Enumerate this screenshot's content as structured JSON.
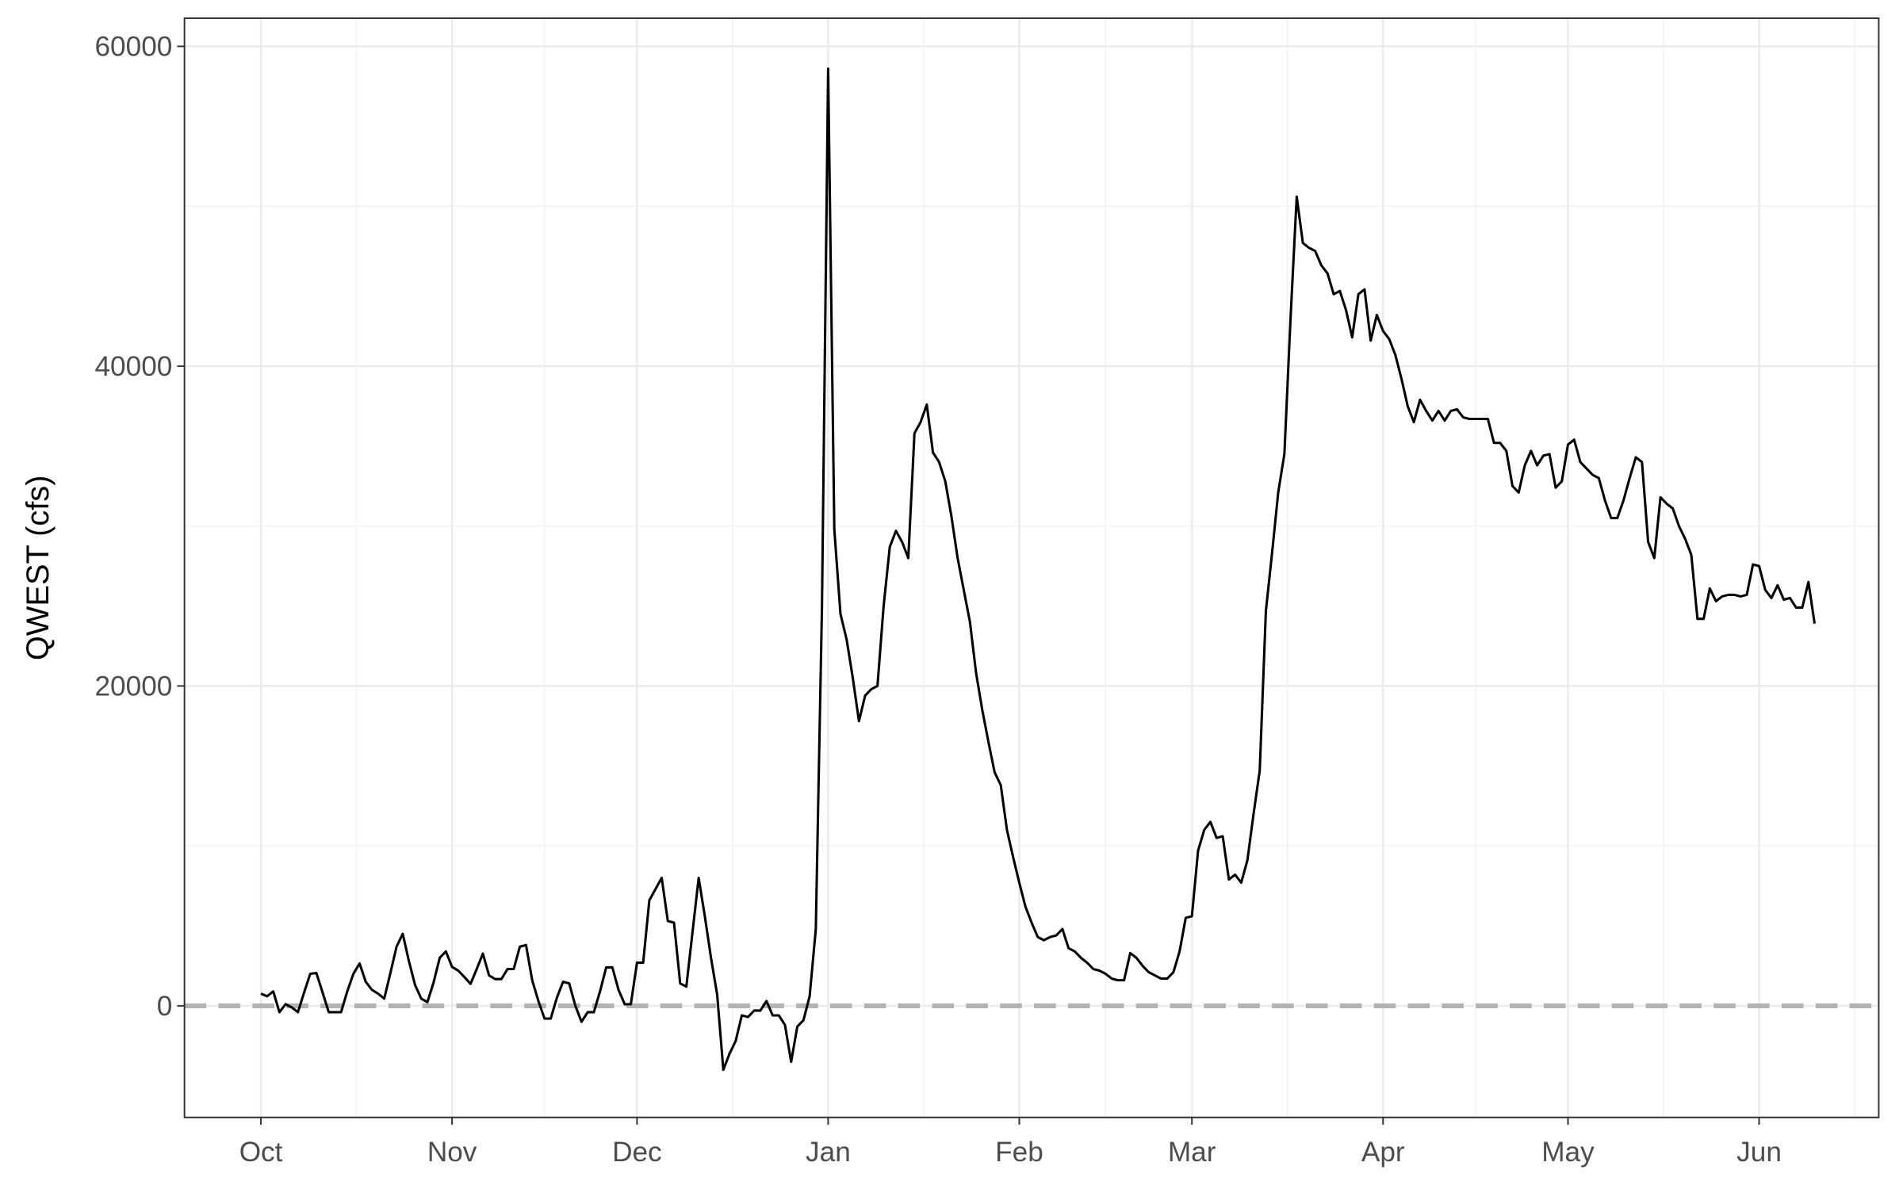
{
  "chart_data": {
    "type": "line",
    "y_label": "QWEST (cfs)",
    "x": [
      0,
      1,
      2,
      3,
      4,
      5,
      6,
      7,
      8,
      9,
      10,
      11,
      12,
      13,
      14,
      15,
      16,
      17,
      18,
      19,
      20,
      21,
      22,
      23,
      24,
      25,
      26,
      27,
      28,
      29,
      30,
      31,
      32,
      33,
      34,
      35,
      36,
      37,
      38,
      39,
      40,
      41,
      42,
      43,
      44,
      45,
      46,
      47,
      48,
      49,
      50,
      51,
      52,
      53,
      54,
      55,
      56,
      57,
      58,
      59,
      60,
      61,
      62,
      63,
      64,
      65,
      66,
      67,
      68,
      69,
      70,
      71,
      72,
      73,
      74,
      75,
      76,
      77,
      78,
      79,
      80,
      81,
      82,
      83,
      84,
      85,
      86,
      87,
      88,
      89,
      90,
      91,
      92,
      93,
      94,
      95,
      96,
      97,
      98,
      99,
      100,
      101,
      102,
      103,
      104,
      105,
      106,
      107,
      108,
      109,
      110,
      111,
      112,
      113,
      114,
      115,
      116,
      117,
      118,
      119,
      120,
      121,
      122,
      123,
      124,
      125,
      126,
      127,
      128,
      129,
      130,
      131,
      132,
      133,
      134,
      135,
      136,
      137,
      138,
      139,
      140,
      141,
      142,
      143,
      144,
      145,
      146,
      147,
      148,
      149,
      150,
      151,
      152,
      153,
      154,
      155,
      156,
      157,
      158,
      159,
      160,
      161,
      162,
      163,
      164,
      165,
      166,
      167,
      168,
      169,
      170,
      171,
      172,
      173,
      174,
      175,
      176,
      177,
      178,
      179,
      180,
      181,
      182,
      183,
      184,
      185,
      186,
      187,
      188,
      189,
      190,
      191,
      192,
      193,
      194,
      195,
      196,
      197,
      198,
      199,
      200,
      201,
      202,
      203,
      204,
      205,
      206,
      207,
      208,
      209,
      210,
      211,
      212,
      213,
      214,
      215,
      216,
      217,
      218,
      219,
      220,
      221,
      222,
      223,
      224,
      225,
      226,
      227,
      228,
      229,
      230,
      231,
      232,
      233,
      234,
      235,
      236,
      237,
      238,
      239,
      240,
      241,
      242,
      243,
      244,
      245,
      246,
      247,
      248,
      249,
      250,
      251,
      252
    ],
    "series": [
      {
        "color": "#000000",
        "values": [
          760,
          600,
          900,
          -400,
          100,
          -100,
          -400,
          830,
          2000,
          2050,
          830,
          -400,
          -400,
          -400,
          900,
          2000,
          2650,
          1500,
          1000,
          760,
          450,
          2050,
          3700,
          4500,
          2800,
          1300,
          450,
          230,
          1450,
          3000,
          3400,
          2430,
          2200,
          1800,
          1370,
          2300,
          3260,
          1900,
          1670,
          1670,
          2300,
          2300,
          3700,
          3800,
          1600,
          300,
          -800,
          -800,
          500,
          1500,
          1400,
          0,
          -1000,
          -400,
          -400,
          900,
          2400,
          2400,
          1000,
          100,
          100,
          2700,
          2700,
          6600,
          7300,
          8000,
          5300,
          5200,
          1400,
          1200,
          4600,
          8000,
          5600,
          3000,
          700,
          -4000,
          -3000,
          -2200,
          -600,
          -700,
          -300,
          -300,
          300,
          -600,
          -600,
          -1200,
          -3500,
          -1300,
          -900,
          600,
          4800,
          25000,
          58600,
          29800,
          24500,
          22900,
          20500,
          17800,
          19400,
          19800,
          20000,
          25000,
          28700,
          29700,
          29000,
          28000,
          35800,
          36500,
          37600,
          34600,
          34000,
          32800,
          30600,
          28000,
          26000,
          24000,
          20800,
          18500,
          16500,
          14600,
          13800,
          11000,
          9300,
          7700,
          6200,
          5200,
          4300,
          4100,
          4300,
          4400,
          4800,
          3600,
          3400,
          3000,
          2700,
          2300,
          2200,
          2000,
          1700,
          1600,
          1600,
          3300,
          3000,
          2500,
          2100,
          1900,
          1700,
          1700,
          2100,
          3400,
          5500,
          5600,
          9700,
          11000,
          11500,
          10500,
          10600,
          7900,
          8200,
          7700,
          9100,
          12000,
          14700,
          24700,
          28300,
          32100,
          34500,
          43000,
          50600,
          47700,
          47400,
          47200,
          46300,
          45800,
          44500,
          44700,
          43500,
          41800,
          44500,
          44800,
          41600,
          43200,
          42200,
          41700,
          40700,
          39200,
          37500,
          36500,
          37900,
          37200,
          36600,
          37200,
          36600,
          37200,
          37300,
          36800,
          36700,
          36700,
          36700,
          36700,
          35200,
          35200,
          34700,
          32500,
          32100,
          33800,
          34700,
          33800,
          34400,
          34500,
          32400,
          32800,
          35100,
          35400,
          34000,
          33600,
          33200,
          33000,
          31600,
          30500,
          30500,
          31600,
          33000,
          34300,
          34000,
          29000,
          28000,
          31800,
          31400,
          31100,
          30000,
          29200,
          28200,
          24200,
          24200,
          26100,
          25300,
          25600,
          25700,
          25700,
          25600,
          25700,
          27600,
          27500,
          26000,
          25500,
          26300,
          25400,
          25500,
          24900,
          24900,
          26500,
          23900
        ]
      }
    ],
    "xlim": [
      -12.4,
      262.4
    ],
    "xticks": [
      {
        "value": 0,
        "label": "Oct"
      },
      {
        "value": 31,
        "label": "Nov"
      },
      {
        "value": 61,
        "label": "Dec"
      },
      {
        "value": 92,
        "label": "Jan"
      },
      {
        "value": 123,
        "label": "Feb"
      },
      {
        "value": 151,
        "label": "Mar"
      },
      {
        "value": 182,
        "label": "Apr"
      },
      {
        "value": 212,
        "label": "May"
      },
      {
        "value": 243,
        "label": "Jun"
      }
    ],
    "ylim": [
      -6980,
      61760
    ],
    "yticks": [
      0,
      20000,
      40000,
      60000
    ],
    "hline": {
      "value": 0,
      "color": "#b3b3b3"
    },
    "grid": true
  }
}
